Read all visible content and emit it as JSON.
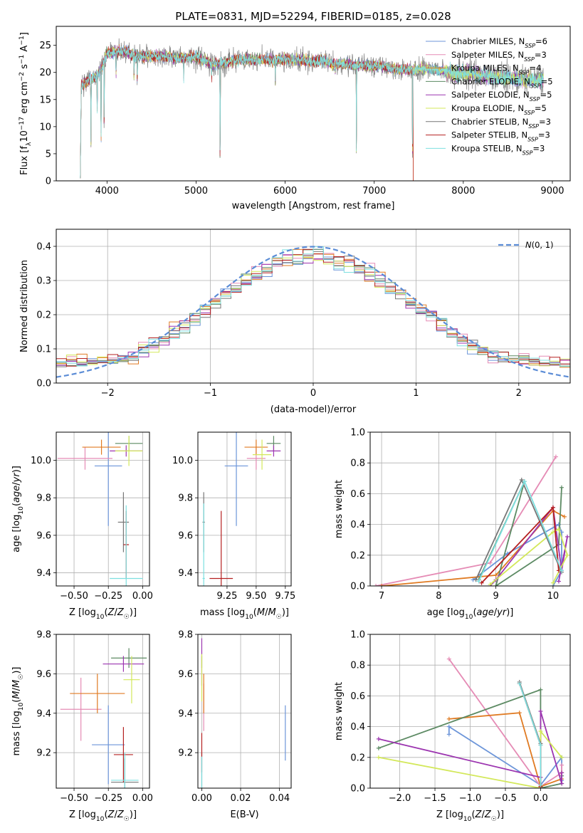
{
  "figure": {
    "title": "PLATE=0831, MJD=52294, FIBERID=0185, z=0.028"
  },
  "colors": {
    "chabrier_miles": "#6c95d9",
    "salpeter_miles": "#e58bb5",
    "kroupa_miles": "#e07b23",
    "chabrier_elodie": "#5c8a63",
    "salpeter_elodie": "#9c35b0",
    "kroupa_elodie": "#d3e85a",
    "chabrier_stelib": "#777777",
    "salpeter_stelib": "#b52020",
    "kroupa_stelib": "#7de0e0",
    "gaussian": "#5b8cd6"
  },
  "legend": {
    "models": [
      {
        "label": "Chabrier MILES, N$_{SSP}$=6",
        "prefix": "Chabrier MILES, N",
        "sub": "SSP",
        "suffix": "=6",
        "color": "#6c95d9"
      },
      {
        "label": "Salpeter MILES, N$_{SSP}$=3",
        "prefix": "Salpeter MILES, N",
        "sub": "SSP",
        "suffix": "=3",
        "color": "#e58bb5"
      },
      {
        "label": "Kroupa MILES, N$_{SSP}$=4",
        "prefix": "Kroupa MILES, N",
        "sub": "SSP",
        "suffix": "=4",
        "color": "#e07b23"
      },
      {
        "label": "Chabrier ELODIE, N$_{SSP}$=5",
        "prefix": "Chabrier ELODIE, N",
        "sub": "SSP",
        "suffix": "=5",
        "color": "#5c8a63"
      },
      {
        "label": "Salpeter ELODIE, N$_{SSP}$=5",
        "prefix": "Salpeter ELODIE, N",
        "sub": "SSP",
        "suffix": "=5",
        "color": "#9c35b0"
      },
      {
        "label": "Kroupa ELODIE, N$_{SSP}$=5",
        "prefix": "Kroupa ELODIE, N",
        "sub": "SSP",
        "suffix": "=5",
        "color": "#d3e85a"
      },
      {
        "label": "Chabrier STELIB, N$_{SSP}$=3",
        "prefix": "Chabrier STELIB, N",
        "sub": "SSP",
        "suffix": "=3",
        "color": "#777777"
      },
      {
        "label": "Salpeter STELIB, N$_{SSP}$=3",
        "prefix": "Salpeter STELIB, N",
        "sub": "SSP",
        "suffix": "=3",
        "color": "#b52020"
      },
      {
        "label": "Kroupa STELIB, N$_{SSP}$=3",
        "prefix": "Kroupa STELIB, N",
        "sub": "SSP",
        "suffix": "=3",
        "color": "#7de0e0"
      }
    ],
    "gaussian_label": "N(0, 1)"
  },
  "chart_data": [
    {
      "id": "spectrum",
      "type": "line",
      "xlabel": "wavelength [Angstrom, rest frame]",
      "ylabel_parts": [
        "Flux [f",
        "λ",
        "10",
        "−17",
        " erg cm",
        "−2",
        " s",
        "−1",
        " A",
        "−1",
        "]"
      ],
      "xlim": [
        3430,
        9200
      ],
      "ylim": [
        0,
        28.5
      ],
      "xticks": [
        4000,
        5000,
        6000,
        7000,
        8000,
        9000
      ],
      "yticks": [
        0,
        5,
        10,
        15,
        20,
        25
      ],
      "legend_position": "upper right",
      "grid": false,
      "spectrum_anchors_x": [
        3700,
        3800,
        3900,
        4000,
        4100,
        4200,
        4300,
        4400,
        4500,
        4600,
        4700,
        4800,
        4900,
        5000,
        5100,
        5200,
        5300,
        5400,
        5500,
        5600,
        5700,
        5800,
        5900,
        6000,
        6100,
        6200,
        6300,
        6400,
        6500,
        6600,
        6700,
        6800,
        6900,
        7000,
        7100,
        7200,
        7300,
        7400,
        7500,
        7600,
        7700,
        7800,
        7900,
        8000,
        8100,
        8200,
        8300,
        8400,
        8500,
        8600,
        8700,
        8800,
        8900
      ],
      "spectrum_anchors_y": [
        17.5,
        18.5,
        19.5,
        23.5,
        23.8,
        24.0,
        23.2,
        22.9,
        23.0,
        23.0,
        22.9,
        22.6,
        22.8,
        22.8,
        22.2,
        21.5,
        21.7,
        22.2,
        22.4,
        22.4,
        22.4,
        22.3,
        22.3,
        22.4,
        22.4,
        22.2,
        22.0,
        22.3,
        21.8,
        21.6,
        21.5,
        21.3,
        21.2,
        21.2,
        21.2,
        20.7,
        20.6,
        20.5,
        20.6,
        20.8,
        20.4,
        20.2,
        19.8,
        20.0,
        19.8,
        19.5,
        19.2,
        19.2,
        19.0,
        18.8,
        18.7,
        18.6,
        18.7
      ],
      "spectrum_start": [
        3700,
        3710
      ],
      "absorption_features": [
        {
          "x": 3820,
          "depth": 12
        },
        {
          "x": 3890,
          "depth": 8
        },
        {
          "x": 3933,
          "depth": 17
        },
        {
          "x": 3968,
          "depth": 15
        },
        {
          "x": 4101,
          "depth": 5
        },
        {
          "x": 4304,
          "depth": 5
        },
        {
          "x": 4340,
          "depth": 6
        },
        {
          "x": 4861,
          "depth": 4
        },
        {
          "x": 5175,
          "depth": 3
        },
        {
          "x": 5270,
          "depth": 22
        },
        {
          "x": 5890,
          "depth": 4
        },
        {
          "x": 6563,
          "depth": 2
        },
        {
          "x": 6800,
          "depth": 21
        },
        {
          "x": 7430,
          "depth": 20
        }
      ],
      "spectrum_end": 7435
    },
    {
      "id": "residuals",
      "type": "histogram",
      "xlabel": "(data-model)/error",
      "ylabel": "Normed distribution",
      "xlim": [
        -2.5,
        2.5
      ],
      "ylim": [
        0,
        0.45
      ],
      "xticks": [
        -2,
        -1,
        0,
        1,
        2
      ],
      "yticks": [
        0.0,
        0.1,
        0.2,
        0.3,
        0.4
      ],
      "grid": true,
      "legend_position": "upper right",
      "bin_width": 0.1,
      "gaussian": {
        "mu": 0,
        "sigma": 1
      }
    },
    {
      "id": "age_vs_Z",
      "type": "errorbar",
      "xlabel": "Z [log10(Z/Z☉)]",
      "ylabel": "age [log10(age/yr)]",
      "xlim": [
        -0.63,
        0.05
      ],
      "ylim": [
        9.33,
        10.15
      ],
      "xticks": [
        -0.5,
        -0.25,
        0.0
      ],
      "yticks": [
        9.4,
        9.6,
        9.8,
        10.0
      ],
      "grid": true,
      "points": [
        {
          "model": 0,
          "x": -0.25,
          "xerr": 0.1,
          "y": 9.97,
          "yerr": 0.32
        },
        {
          "model": 1,
          "x": -0.42,
          "xerr": 0.2,
          "y": 10.01,
          "yerr": 0.06
        },
        {
          "model": 2,
          "x": -0.3,
          "xerr": 0.14,
          "y": 10.07,
          "yerr": 0.04
        },
        {
          "model": 3,
          "x": -0.1,
          "xerr": 0.1,
          "y": 10.09,
          "yerr": 0.04
        },
        {
          "model": 4,
          "x": -0.12,
          "xerr": 0.12,
          "y": 10.05,
          "yerr": 0.03
        },
        {
          "model": 5,
          "x": -0.1,
          "xerr": 0.1,
          "y": 10.05,
          "yerr": 0.08
        },
        {
          "model": 6,
          "x": -0.14,
          "xerr": 0.04,
          "y": 9.67,
          "yerr": 0.16
        },
        {
          "model": 7,
          "x": -0.12,
          "xerr": 0.02,
          "y": 9.55,
          "yerr": 0.18
        },
        {
          "model": 8,
          "x": -0.12,
          "xerr": 0.12,
          "y": 9.37,
          "yerr": 0.39
        }
      ]
    },
    {
      "id": "age_vs_mass",
      "type": "errorbar",
      "xlabel": "mass [log10(M/M☉)]",
      "ylabel": "",
      "xlim": [
        9.0,
        9.8
      ],
      "ylim": [
        9.33,
        10.15
      ],
      "xticks": [
        9.25,
        9.5,
        9.75
      ],
      "yticks": [
        9.4,
        9.6,
        9.8,
        10.0
      ],
      "grid": true,
      "points": [
        {
          "model": 0,
          "x": 9.33,
          "xerr": 0.1,
          "y": 9.97,
          "yerr": 0.32
        },
        {
          "model": 1,
          "x": 9.5,
          "xerr": 0.08,
          "y": 10.01,
          "yerr": 0.06
        },
        {
          "model": 2,
          "x": 9.5,
          "xerr": 0.1,
          "y": 10.07,
          "yerr": 0.04
        },
        {
          "model": 3,
          "x": 9.65,
          "xerr": 0.06,
          "y": 10.09,
          "yerr": 0.04
        },
        {
          "model": 4,
          "x": 9.65,
          "xerr": 0.06,
          "y": 10.05,
          "yerr": 0.03
        },
        {
          "model": 5,
          "x": 9.55,
          "xerr": 0.08,
          "y": 10.03,
          "yerr": 0.08
        },
        {
          "model": 6,
          "x": 9.05,
          "xerr": 0.01,
          "y": 9.67,
          "yerr": 0.16
        },
        {
          "model": 7,
          "x": 9.2,
          "xerr": 0.1,
          "y": 9.37,
          "yerr": 0.36
        },
        {
          "model": 8,
          "x": 9.05,
          "xerr": 0.01,
          "y": 9.37,
          "yerr": 0.4
        }
      ]
    },
    {
      "id": "weight_vs_age",
      "type": "line",
      "xlabel": "age  [log10(age/yr)]",
      "ylabel": "mass weight",
      "xlim": [
        6.8,
        10.3
      ],
      "ylim": [
        0,
        1.0
      ],
      "xticks": [
        7,
        8,
        9,
        10
      ],
      "yticks": [
        0.0,
        0.2,
        0.4,
        0.6,
        0.8,
        1.0
      ],
      "grid": true,
      "series": [
        {
          "model": 0,
          "x": [
            8.6,
            9.2,
            10.1,
            10.15,
            10.15,
            10.0
          ],
          "y": [
            0.04,
            0.21,
            0.4,
            0.35,
            0.1,
            0.0
          ]
        },
        {
          "model": 1,
          "x": [
            6.9,
            8.9,
            10.05
          ],
          "y": [
            0.0,
            0.15,
            0.84
          ]
        },
        {
          "model": 2,
          "x": [
            7.0,
            9.0,
            10.0,
            10.2
          ],
          "y": [
            0.0,
            0.07,
            0.49,
            0.45
          ]
        },
        {
          "model": 3,
          "x": [
            8.7,
            9.5,
            9.0,
            10.1,
            10.15
          ],
          "y": [
            0.04,
            0.68,
            0.0,
            0.27,
            0.64
          ]
        },
        {
          "model": 4,
          "x": [
            8.9,
            9.0,
            10.0,
            10.15,
            10.25,
            10.1
          ],
          "y": [
            0.0,
            0.04,
            0.51,
            0.1,
            0.32,
            0.03
          ]
        },
        {
          "model": 5,
          "x": [
            8.9,
            10.0,
            10.1,
            10.25,
            10.0
          ],
          "y": [
            0.01,
            0.35,
            0.37,
            0.2,
            0.02
          ]
        },
        {
          "model": 6,
          "x": [
            8.65,
            9.45,
            10.15
          ],
          "y": [
            0.04,
            0.69,
            0.09
          ]
        },
        {
          "model": 7,
          "x": [
            8.75,
            10.0,
            10.1
          ],
          "y": [
            0.02,
            0.51,
            0.1
          ]
        },
        {
          "model": 8,
          "x": [
            8.7,
            9.5,
            10.15
          ],
          "y": [
            0.03,
            0.68,
            0.1
          ]
        }
      ]
    },
    {
      "id": "mass_vs_Z",
      "type": "errorbar",
      "xlabel": "Z [log10(Z/Z☉)]",
      "ylabel": "mass [log10(M/M☉)]",
      "xlim": [
        -0.63,
        0.05
      ],
      "ylim": [
        9.02,
        9.8
      ],
      "xticks": [
        -0.5,
        -0.25,
        0.0
      ],
      "yticks": [
        9.2,
        9.4,
        9.6,
        9.8
      ],
      "grid": true,
      "points": [
        {
          "model": 0,
          "x": -0.25,
          "xerr": 0.12,
          "y": 9.24,
          "yerr": 0.2
        },
        {
          "model": 1,
          "x": -0.45,
          "xerr": 0.15,
          "y": 9.42,
          "yerr": 0.16
        },
        {
          "model": 2,
          "x": -0.33,
          "xerr": 0.2,
          "y": 9.5,
          "yerr": 0.1
        },
        {
          "model": 3,
          "x": -0.1,
          "xerr": 0.13,
          "y": 9.68,
          "yerr": 0.05
        },
        {
          "model": 4,
          "x": -0.14,
          "xerr": 0.15,
          "y": 9.65,
          "yerr": 0.04
        },
        {
          "model": 5,
          "x": -0.08,
          "xerr": 0.06,
          "y": 9.57,
          "yerr": 0.12
        },
        {
          "model": 6,
          "x": -0.13,
          "xerr": 0.1,
          "y": 9.05,
          "yerr": 0.12
        },
        {
          "model": 7,
          "x": -0.14,
          "xerr": 0.07,
          "y": 9.19,
          "yerr": 0.14
        },
        {
          "model": 8,
          "x": -0.13,
          "xerr": 0.1,
          "y": 9.06,
          "yerr": 0.14
        }
      ]
    },
    {
      "id": "mass_vs_ebv",
      "type": "errorbar",
      "xlabel": "E(B-V)",
      "ylabel": "",
      "xlim": [
        -0.002,
        0.046
      ],
      "ylim": [
        9.02,
        9.8
      ],
      "xticks": [
        0.0,
        0.02,
        0.04
      ],
      "yticks": [
        9.2,
        9.4,
        9.6,
        9.8
      ],
      "grid": true,
      "points": [
        {
          "model": 0,
          "x": 0.043,
          "xerr": 0.0,
          "y": 9.3,
          "yerr": 0.14
        },
        {
          "model": 1,
          "x": 0.001,
          "xerr": 0.0,
          "y": 9.43,
          "yerr": 0.12
        },
        {
          "model": 2,
          "x": 0.001,
          "xerr": 0.0,
          "y": 9.5,
          "yerr": 0.1
        },
        {
          "model": 3,
          "x": 0.0,
          "xerr": 0.0,
          "y": 9.66,
          "yerr": 0.03
        },
        {
          "model": 4,
          "x": 0.0,
          "xerr": 0.0,
          "y": 9.66,
          "yerr": 0.12
        },
        {
          "model": 5,
          "x": 0.0,
          "xerr": 0.0,
          "y": 9.58,
          "yerr": 0.12
        },
        {
          "model": 6,
          "x": 0.0,
          "xerr": 0.0,
          "y": 9.1,
          "yerr": 0.1
        },
        {
          "model": 7,
          "x": 0.0,
          "xerr": 0.0,
          "y": 9.2,
          "yerr": 0.1
        },
        {
          "model": 8,
          "x": 0.0,
          "xerr": 0.0,
          "y": 9.08,
          "yerr": 0.1
        }
      ]
    },
    {
      "id": "weight_vs_Z",
      "type": "line",
      "xlabel": "Z [log10(Z/Z☉)]",
      "ylabel": "mass weight",
      "xlim": [
        -2.42,
        0.42
      ],
      "ylim": [
        0,
        1.0
      ],
      "xticks": [
        -2.0,
        -1.5,
        -1.0,
        -0.5,
        0.0
      ],
      "yticks": [
        0.0,
        0.2,
        0.4,
        0.6,
        0.8,
        1.0
      ],
      "grid": true,
      "series": [
        {
          "model": 0,
          "x": [
            -1.3,
            -1.3,
            0.0,
            0.3,
            0.3
          ],
          "y": [
            0.35,
            0.4,
            0.02,
            0.2,
            0.05
          ]
        },
        {
          "model": 1,
          "x": [
            -1.3,
            0.0,
            0.3,
            0.3
          ],
          "y": [
            0.84,
            0.01,
            0.1,
            0.15
          ]
        },
        {
          "model": 2,
          "x": [
            -1.3,
            -0.3,
            0.0,
            0.3,
            0.3
          ],
          "y": [
            0.45,
            0.49,
            0.01,
            0.06,
            0.1
          ]
        },
        {
          "model": 3,
          "x": [
            -2.3,
            0.0,
            0.0,
            0.3,
            0.3
          ],
          "y": [
            0.26,
            0.64,
            0.0,
            0.03,
            0.08
          ]
        },
        {
          "model": 4,
          "x": [
            -2.3,
            0.0,
            0.0,
            0.3,
            0.3
          ],
          "y": [
            0.32,
            0.07,
            0.5,
            0.03,
            0.1
          ]
        },
        {
          "model": 5,
          "x": [
            -2.3,
            0.0,
            0.0,
            0.3
          ],
          "y": [
            0.2,
            0.0,
            0.37,
            0.2
          ]
        },
        {
          "model": 6,
          "x": [
            -0.3,
            0.0,
            0.0
          ],
          "y": [
            0.69,
            0.29,
            0.0
          ]
        },
        {
          "model": 7,
          "x": [
            -0.3,
            0.0,
            0.0
          ],
          "y": [
            0.68,
            0.28,
            0.01
          ]
        },
        {
          "model": 8,
          "x": [
            -0.3,
            0.0,
            0.0
          ],
          "y": [
            0.68,
            0.28,
            0.02
          ]
        }
      ]
    }
  ]
}
